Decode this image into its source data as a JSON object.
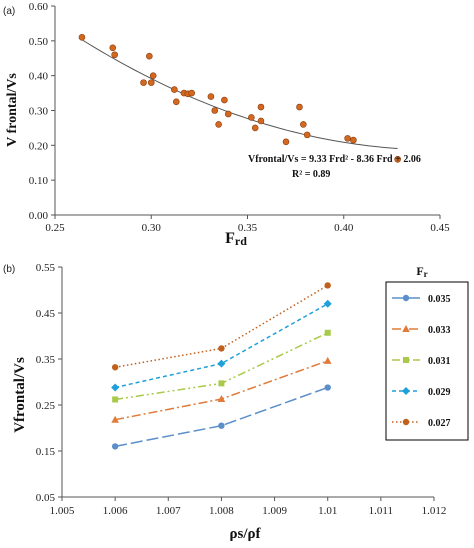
{
  "chart_data": [
    {
      "panel_label": "(a)",
      "type": "scatter",
      "xlabel_main": "F",
      "xlabel_sub": "rd",
      "ylabel": "V frontal/Vs",
      "xlim": [
        0.25,
        0.45
      ],
      "ylim": [
        0.0,
        0.6
      ],
      "xticks": [
        "0.25",
        "0.30",
        "0.35",
        "0.40",
        "0.45"
      ],
      "yticks": [
        "0.00",
        "0.10",
        "0.20",
        "0.30",
        "0.40",
        "0.50",
        "0.60"
      ],
      "marker_color": "#D2691E",
      "grid": false,
      "points": [
        [
          0.264,
          0.51
        ],
        [
          0.28,
          0.48
        ],
        [
          0.281,
          0.46
        ],
        [
          0.296,
          0.38
        ],
        [
          0.299,
          0.456
        ],
        [
          0.3,
          0.38
        ],
        [
          0.301,
          0.4
        ],
        [
          0.312,
          0.36
        ],
        [
          0.313,
          0.325
        ],
        [
          0.317,
          0.35
        ],
        [
          0.319,
          0.348
        ],
        [
          0.321,
          0.35
        ],
        [
          0.331,
          0.34
        ],
        [
          0.333,
          0.3
        ],
        [
          0.335,
          0.26
        ],
        [
          0.338,
          0.33
        ],
        [
          0.34,
          0.29
        ],
        [
          0.352,
          0.28
        ],
        [
          0.354,
          0.25
        ],
        [
          0.357,
          0.27
        ],
        [
          0.357,
          0.31
        ],
        [
          0.37,
          0.21
        ],
        [
          0.377,
          0.31
        ],
        [
          0.379,
          0.26
        ],
        [
          0.381,
          0.23
        ],
        [
          0.402,
          0.22
        ],
        [
          0.405,
          0.215
        ],
        [
          0.428,
          0.16
        ]
      ],
      "fit": {
        "a": 9.33,
        "b": -8.36,
        "c": 2.06,
        "x_range": [
          0.264,
          0.428
        ]
      },
      "equation_text": "Vfrontal/Vs = 9.33 Frd² - 8.36 Frd + 2.06",
      "r2_text": "R² = 0.89"
    },
    {
      "panel_label": "(b)",
      "type": "line",
      "xlabel": "ρs/ρf",
      "ylabel": "Vfrontal/Vs",
      "xlim": [
        1.005,
        1.012
      ],
      "ylim": [
        0.05,
        0.55
      ],
      "xticks": [
        "1.005",
        "1.006",
        "1.007",
        "1.008",
        "1.009",
        "1.01",
        "1.011",
        "1.012"
      ],
      "yticks": [
        "0.05",
        "0.15",
        "0.25",
        "0.35",
        "0.45",
        "0.55"
      ],
      "x": [
        1.006,
        1.008,
        1.01
      ],
      "legend_title_main": "F",
      "legend_title_sub": "r",
      "legend_position": "right",
      "series": [
        {
          "name": "0.035",
          "values": [
            0.16,
            0.205,
            0.288
          ],
          "color": "#5B8FC9",
          "marker": "circle",
          "dash": "12,4"
        },
        {
          "name": "0.033",
          "values": [
            0.218,
            0.263,
            0.346
          ],
          "color": "#E07B39",
          "marker": "triangle",
          "dash": "9,3,2,3"
        },
        {
          "name": "0.031",
          "values": [
            0.262,
            0.297,
            0.407
          ],
          "color": "#A8C94A",
          "marker": "square",
          "dash": "8,3,2,3,2,3"
        },
        {
          "name": "0.029",
          "values": [
            0.288,
            0.34,
            0.47
          ],
          "color": "#1FA0D8",
          "marker": "diamond",
          "dash": "4,3"
        },
        {
          "name": "0.027",
          "values": [
            0.332,
            0.373,
            0.51
          ],
          "color": "#C0601C",
          "marker": "circle",
          "dash": "1.5,2.5"
        }
      ]
    }
  ]
}
